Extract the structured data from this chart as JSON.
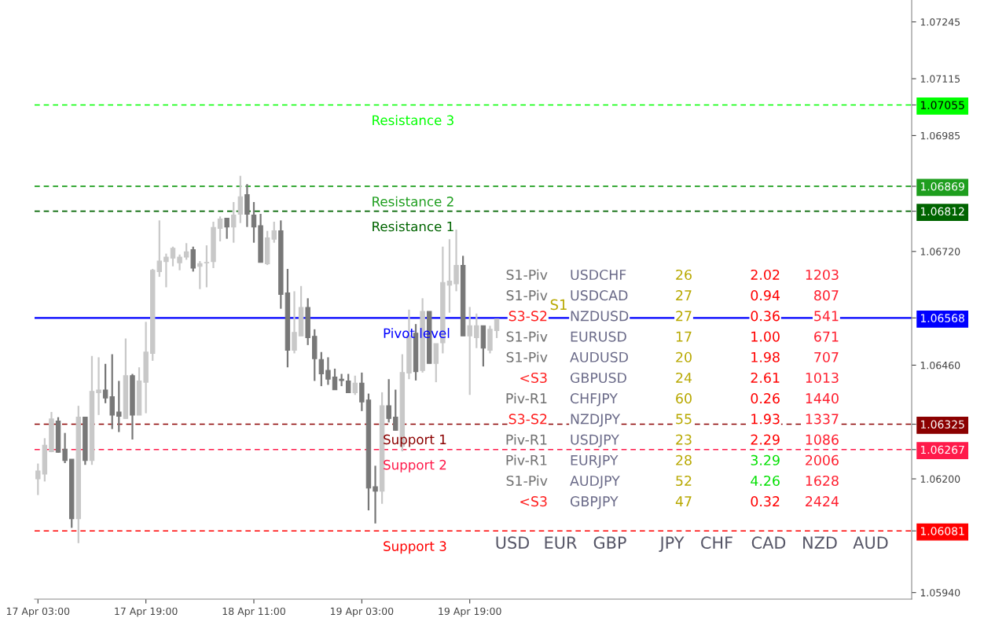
{
  "chart_data": {
    "type": "candlestick",
    "categories": [
      "17 Apr 03:00",
      null,
      null,
      null,
      null,
      null,
      null,
      null,
      null,
      null,
      null,
      null,
      null,
      null,
      null,
      null,
      "17 Apr 19:00",
      null,
      null,
      null,
      null,
      null,
      null,
      null,
      null,
      null,
      null,
      null,
      null,
      null,
      null,
      null,
      "18 Apr 11:00",
      null,
      null,
      null,
      null,
      null,
      null,
      null,
      null,
      null,
      null,
      null,
      null,
      null,
      null,
      null,
      "19 Apr 03:00",
      null,
      null,
      null,
      null,
      null,
      null,
      null,
      null,
      null,
      null,
      null,
      null,
      null,
      null,
      null,
      "19 Apr 19:00",
      null,
      null,
      null,
      null,
      null,
      null,
      null,
      null,
      null,
      null,
      null,
      null,
      null,
      null,
      null,
      null,
      null,
      null,
      null,
      null,
      null,
      null,
      null,
      null,
      null,
      null,
      null,
      null,
      null,
      null,
      null,
      null,
      null,
      null,
      null,
      null,
      null,
      null,
      null,
      null,
      null,
      null,
      null,
      null,
      null,
      null,
      null,
      null,
      null,
      null,
      null,
      null,
      null,
      null,
      null,
      null,
      null,
      null,
      null,
      null,
      null,
      null,
      null,
      null,
      null
    ],
    "ohlc": [
      [
        1.062,
        1.06235,
        1.06163,
        1.06218
      ],
      [
        1.06211,
        1.06293,
        1.06194,
        1.06277
      ],
      [
        1.06262,
        1.06353,
        1.06261,
        1.06337
      ],
      [
        1.06332,
        1.06341,
        1.0626,
        1.06261
      ],
      [
        1.06268,
        1.06305,
        1.06236,
        1.06242
      ],
      [
        1.06245,
        1.06245,
        1.06088,
        1.06109
      ],
      [
        1.06109,
        1.06367,
        1.06053,
        1.06341
      ],
      [
        1.06341,
        1.06341,
        1.06232,
        1.06242
      ],
      [
        1.06242,
        1.06481,
        1.06232,
        1.064
      ],
      [
        1.06397,
        1.06478,
        1.06346,
        1.06403
      ],
      [
        1.06403,
        1.06463,
        1.06373,
        1.06385
      ],
      [
        1.06388,
        1.06485,
        1.06314,
        1.06346
      ],
      [
        1.06353,
        1.06424,
        1.06307,
        1.06343
      ],
      [
        1.06338,
        1.06521,
        1.06338,
        1.06436
      ],
      [
        1.06436,
        1.0644,
        1.0629,
        1.06346
      ],
      [
        1.06346,
        1.06455,
        1.06346,
        1.06424
      ],
      [
        1.06421,
        1.06559,
        1.0635,
        1.0649
      ],
      [
        1.06487,
        1.0668,
        1.0647,
        1.06677
      ],
      [
        1.06674,
        1.06791,
        1.06662,
        1.06698
      ],
      [
        1.06697,
        1.06715,
        1.06638,
        1.06707
      ],
      [
        1.06705,
        1.06731,
        1.06686,
        1.06727
      ],
      [
        1.06694,
        1.06713,
        1.06677,
        1.06707
      ],
      [
        1.06707,
        1.06739,
        1.06701,
        1.06719
      ],
      [
        1.06724,
        1.06731,
        1.06674,
        1.06682
      ],
      [
        1.06686,
        1.06698,
        1.06634,
        1.06692
      ],
      [
        1.06694,
        1.06734,
        1.06638,
        1.06695
      ],
      [
        1.06697,
        1.06788,
        1.06682,
        1.06775
      ],
      [
        1.06773,
        1.068,
        1.06743,
        1.06794
      ],
      [
        1.06796,
        1.06796,
        1.06749,
        1.06776
      ],
      [
        1.06776,
        1.06833,
        1.0674,
        1.06803
      ],
      [
        1.06805,
        1.06893,
        1.06785,
        1.06845
      ],
      [
        1.0685,
        1.06874,
        1.06776,
        1.06805
      ],
      [
        1.06803,
        1.06833,
        1.0674,
        1.06776
      ],
      [
        1.06779,
        1.06806,
        1.06695,
        1.06695
      ],
      [
        1.06692,
        1.06767,
        1.06689,
        1.06751
      ],
      [
        1.06748,
        1.06788,
        1.0674,
        1.06767
      ],
      [
        1.06767,
        1.06791,
        1.06589,
        1.06622
      ],
      [
        1.06625,
        1.0668,
        1.06455,
        1.06494
      ],
      [
        1.06494,
        1.06629,
        1.06487,
        1.06535
      ],
      [
        1.06527,
        1.06641,
        1.06527,
        1.06592
      ],
      [
        1.06592,
        1.06613,
        1.06506,
        1.06523
      ],
      [
        1.06526,
        1.06542,
        1.06424,
        1.06475
      ],
      [
        1.06473,
        1.0649,
        1.06412,
        1.0644
      ],
      [
        1.06448,
        1.06478,
        1.06415,
        1.06428
      ],
      [
        1.06433,
        1.06452,
        1.06404,
        1.06404
      ],
      [
        1.06428,
        1.0644,
        1.06412,
        1.06425
      ],
      [
        1.06424,
        1.0644,
        1.06397,
        1.06397
      ],
      [
        1.06397,
        1.06436,
        1.06392,
        1.06419
      ],
      [
        1.06419,
        1.06443,
        1.06355,
        1.06376
      ],
      [
        1.0638,
        1.06395,
        1.06128,
        1.06179
      ],
      [
        1.06182,
        1.0623,
        1.06098,
        1.06172
      ],
      [
        1.06172,
        1.06398,
        1.06143,
        1.06367
      ],
      [
        1.06367,
        1.06428,
        1.06329,
        1.06338
      ],
      [
        1.06341,
        1.06404,
        1.06311,
        1.06311
      ],
      [
        1.06275,
        1.06485,
        1.06263,
        1.06443
      ],
      [
        1.06442,
        1.06587,
        1.06428,
        1.06527
      ],
      [
        1.06533,
        1.06554,
        1.06425,
        1.06445
      ],
      [
        1.06448,
        1.06613,
        1.06443,
        1.06583
      ],
      [
        1.06583,
        1.06583,
        1.06464,
        1.06464
      ],
      [
        1.06464,
        1.06509,
        1.06421,
        1.06509
      ],
      [
        1.06511,
        1.06731,
        1.06487,
        1.06649
      ],
      [
        1.06643,
        1.06748,
        1.0658,
        1.06652
      ],
      [
        1.06646,
        1.0677,
        1.06629,
        1.06688
      ],
      [
        1.06688,
        1.0671,
        1.06527,
        1.06527
      ],
      [
        1.06527,
        1.06593,
        1.06392,
        1.0655
      ],
      [
        1.06523,
        1.06578,
        1.06499,
        1.0655
      ],
      [
        1.0655,
        1.0655,
        1.06457,
        1.06499
      ],
      [
        1.06494,
        1.0655,
        1.06487,
        1.06542
      ],
      [
        1.06539,
        1.06566,
        1.06522,
        1.06566
      ],
      null,
      null,
      null,
      null,
      null,
      null,
      null,
      null,
      null,
      null,
      null,
      null,
      null,
      null,
      null,
      null,
      null,
      null,
      null,
      null,
      null,
      null,
      null,
      null,
      null,
      null,
      null,
      null,
      null,
      null,
      null,
      null,
      null,
      null,
      null,
      null,
      null,
      null,
      null,
      null,
      null,
      null,
      null,
      null,
      null,
      null,
      null,
      null,
      null,
      null,
      null,
      null,
      null,
      null,
      null,
      null,
      null,
      null,
      null,
      null,
      null
    ],
    "colors": [
      "#c8c8c8",
      "#c8c8c8",
      "#c8c8c8",
      "#787878",
      "#787878",
      "#787878",
      "#c8c8c8",
      "#787878",
      "#c8c8c8",
      "#c8c8c8",
      "#787878",
      "#787878",
      "#787878",
      "#c8c8c8",
      "#787878",
      "#c8c8c8",
      "#c8c8c8",
      "#c8c8c8",
      "#c8c8c8",
      "#c8c8c8",
      "#c8c8c8",
      "#c8c8c8",
      "#c8c8c8",
      "#787878",
      "#c8c8c8",
      "#c8c8c8",
      "#c8c8c8",
      "#c8c8c8",
      "#787878",
      "#c8c8c8",
      "#c8c8c8",
      "#787878",
      "#787878",
      "#787878",
      "#c8c8c8",
      "#c8c8c8",
      "#787878",
      "#787878",
      "#c8c8c8",
      "#c8c8c8",
      "#787878",
      "#787878",
      "#787878",
      "#787878",
      "#787878",
      "#787878",
      "#787878",
      "#c8c8c8",
      "#787878",
      "#787878",
      "#787878",
      "#c8c8c8",
      "#787878",
      "#787878",
      "#c8c8c8",
      "#c8c8c8",
      "#787878",
      "#c8c8c8",
      "#787878",
      "#c8c8c8",
      "#c8c8c8",
      "#c8c8c8",
      "#c8c8c8",
      "#787878",
      "#c8c8c8",
      "#c8c8c8",
      "#787878",
      "#c8c8c8",
      "#c8c8c8",
      null,
      null,
      null,
      null,
      null,
      null,
      null,
      null,
      null,
      null,
      null,
      null,
      null,
      null,
      null,
      null,
      null,
      null,
      null,
      null,
      null,
      null,
      null,
      null,
      null,
      null,
      null,
      null,
      null,
      null,
      null,
      null,
      null,
      null,
      null,
      null,
      null,
      null,
      null,
      null,
      null,
      null,
      null,
      null,
      null,
      null,
      null,
      null,
      null,
      null,
      null,
      null,
      null,
      null,
      null,
      null,
      null,
      null,
      null,
      null,
      null
    ],
    "ylim": [
      1.05925,
      1.07295
    ],
    "yticks": [
      1.07245,
      1.07115,
      1.07055,
      1.06985,
      1.06869,
      1.06812,
      {
        "value": 1.0672,
        "label": "1.06720"
      },
      1.06568,
      {
        "value": 1.0646,
        "label": "1.06460"
      },
      1.06325,
      1.06267,
      {
        "value": 1.062,
        "label": "1.06200"
      },
      1.06081,
      {
        "value": 1.0594,
        "label": "1.05940"
      }
    ],
    "grid": false,
    "legend": false,
    "ref_lines": [
      {
        "axis": "y",
        "value": 1.07055,
        "label": "Resistance 3",
        "color": "#00ff00",
        "line_style": "dashed"
      },
      {
        "axis": "y",
        "value": 1.06869,
        "label": "Resistance 2",
        "color": "#1e9e1e",
        "line_style": "dashed"
      },
      {
        "axis": "y",
        "value": 1.06812,
        "label": "Resistance 1",
        "color": "#006400",
        "line_style": "dashed"
      },
      {
        "axis": "y",
        "value": 1.06568,
        "label": "Pivot level",
        "color": "#0000ff",
        "line_style": "solid"
      },
      {
        "axis": "y",
        "value": 1.06325,
        "label": "Support 1",
        "color": "#8b0000",
        "line_style": "dashed"
      },
      {
        "axis": "y",
        "value": 1.06267,
        "label": "Support 2",
        "color": "#ff1a4a",
        "line_style": "dashed"
      },
      {
        "axis": "y",
        "value": 1.06081,
        "label": "Support 3",
        "color": "#ff0000",
        "line_style": "dashed"
      }
    ],
    "annotations": [
      "S1-Piv",
      "USDCHF",
      "26",
      "2.02",
      "1203",
      "S1-Piv",
      "USDCAD",
      "27",
      "0.94",
      "807",
      "S3-S2",
      "NZDUSD",
      "27",
      "0.36",
      "541",
      "S1-Piv",
      "EURUSD",
      "17",
      "1.00",
      "671",
      "S1-Piv",
      "AUDUSD",
      "20",
      "1.98",
      "707",
      "<S3",
      "GBPUSD",
      "24",
      "2.61",
      "1013",
      "Piv-R1",
      "CHFJPY",
      "60",
      "0.26",
      "1440",
      "S3-S2",
      "NZDJPY",
      "55",
      "1.93",
      "1337",
      "Piv-R1",
      "USDJPY",
      "23",
      "2.29",
      "1086",
      "Piv-R1",
      "EURJPY",
      "28",
      "3.29",
      "2006",
      "S1-Piv",
      "AUDJPY",
      "52",
      "4.26",
      "1628",
      "<S3",
      "GBPJPY",
      "47",
      "0.32",
      "2424",
      "USD",
      "EUR",
      "GBP",
      "JPY",
      "CHF",
      "CAD",
      "NZD",
      "AUD",
      "S1"
    ]
  }
}
